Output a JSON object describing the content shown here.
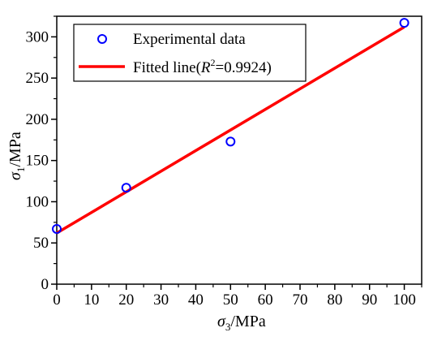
{
  "chart_data": {
    "type": "scatter",
    "xlabel": {
      "symbol": "σ",
      "sub": "3",
      "unit": "/MPa"
    },
    "ylabel": {
      "symbol": "σ",
      "sub": "1",
      "unit": "/MPa"
    },
    "xlim": [
      0,
      105
    ],
    "ylim": [
      0,
      325
    ],
    "xticks": [
      0,
      10,
      20,
      30,
      40,
      50,
      60,
      70,
      80,
      90,
      100
    ],
    "yticks": [
      0,
      50,
      100,
      150,
      200,
      250,
      300
    ],
    "grid": false,
    "legend_position": "top-left",
    "series": [
      {
        "name": "Experimental data",
        "kind": "scatter",
        "marker": "open-circle",
        "color": "#0000ff",
        "x": [
          0,
          20,
          50,
          100
        ],
        "y": [
          67,
          117,
          173,
          317
        ]
      },
      {
        "name": "Fitted line",
        "kind": "line",
        "color": "#ff0000",
        "x": [
          0,
          100
        ],
        "y": [
          62,
          312
        ],
        "r2_label": "R",
        "r2_value": "=0.9924)"
      }
    ],
    "legend": {
      "scatter_label": "Experimental data",
      "line_label_prefix": "Fitted line(",
      "line_label_r": "R",
      "line_label_sup": "2",
      "line_label_suffix": "=0.9924)"
    }
  }
}
